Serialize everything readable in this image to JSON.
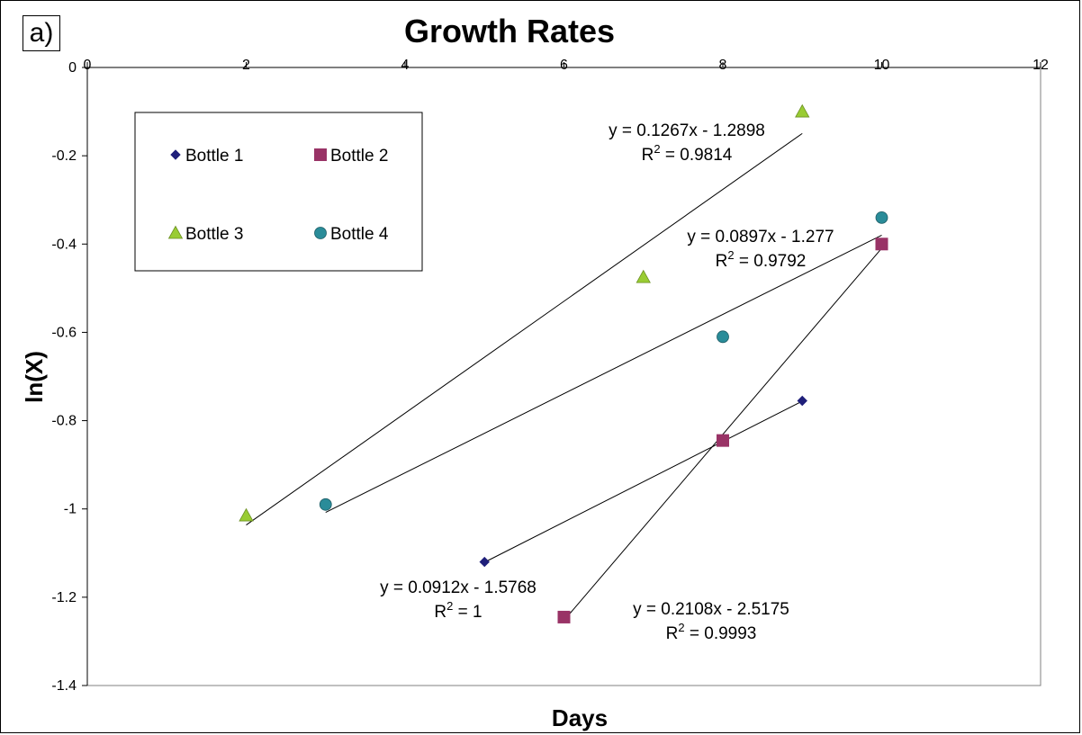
{
  "panel_label": "a)",
  "chart_data": {
    "type": "scatter",
    "title": "Growth Rates",
    "xlabel": "Days",
    "ylabel": "ln(X)",
    "xlim": [
      0,
      12
    ],
    "ylim": [
      -1.4,
      0
    ],
    "x_ticks": [
      0,
      2,
      4,
      6,
      8,
      10,
      12
    ],
    "y_ticks": [
      0,
      -0.2,
      -0.4,
      -0.6,
      -0.8,
      -1,
      -1.2,
      -1.4
    ],
    "x_tick_labels": [
      "0",
      "2",
      "4",
      "6",
      "8",
      "10",
      "12"
    ],
    "y_tick_labels": [
      "0",
      "-0.2",
      "-0.4",
      "-0.6",
      "-0.8",
      "-1",
      "-1.2",
      "-1.4"
    ],
    "grid": false,
    "legend_position": "top-left",
    "series": [
      {
        "name": "Bottle 1",
        "marker": "diamond",
        "color": "#1f1f7a",
        "points": [
          [
            5,
            -1.12
          ],
          [
            9,
            -0.755
          ]
        ],
        "trendline": {
          "slope": 0.0912,
          "intercept": -1.5768,
          "x_range": [
            5,
            9
          ],
          "equation": "y = 0.0912x - 1.5768",
          "r2_prefix": "R",
          "r2_value": " = 1"
        }
      },
      {
        "name": "Bottle 2",
        "marker": "square",
        "color": "#993366",
        "points": [
          [
            6,
            -1.245
          ],
          [
            8,
            -0.845
          ],
          [
            10,
            -0.4
          ]
        ],
        "trendline": {
          "slope": 0.2108,
          "intercept": -2.5175,
          "x_range": [
            6,
            10
          ],
          "equation": "y = 0.2108x - 2.5175",
          "r2_prefix": "R",
          "r2_value": " = 0.9993"
        }
      },
      {
        "name": "Bottle 3",
        "marker": "triangle",
        "color": "#99cc33",
        "points": [
          [
            2,
            -1.015
          ],
          [
            7,
            -0.475
          ],
          [
            9,
            -0.1
          ]
        ],
        "trendline": {
          "slope": 0.1267,
          "intercept": -1.2898,
          "x_range": [
            2,
            9
          ],
          "equation": "y = 0.1267x - 1.2898",
          "r2_prefix": "R",
          "r2_value": " = 0.9814"
        }
      },
      {
        "name": "Bottle 4",
        "marker": "circle",
        "color": "#2a8c99",
        "points": [
          [
            3,
            -0.99
          ],
          [
            8,
            -0.61
          ],
          [
            10,
            -0.34
          ]
        ],
        "trendline": {
          "slope": 0.0897,
          "intercept": -1.277,
          "x_range": [
            3,
            10
          ],
          "equation": "y = 0.0897x - 1.277",
          "r2_prefix": "R",
          "r2_value": " = 0.9792"
        }
      }
    ]
  }
}
